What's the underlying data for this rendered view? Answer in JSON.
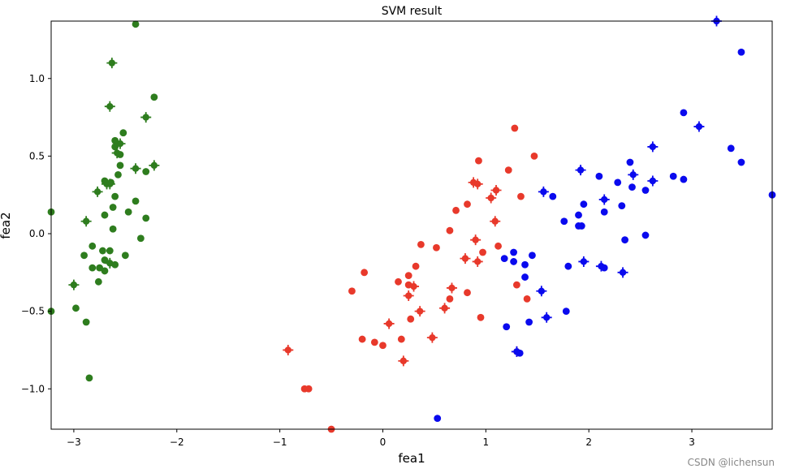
{
  "chart_data": {
    "type": "scatter",
    "title": "SVM result",
    "xlabel": "fea1",
    "ylabel": "fea2",
    "xlim": [
      -3.22,
      3.78
    ],
    "ylim": [
      -1.26,
      1.37
    ],
    "xticks": [
      -3,
      -2,
      -1,
      0,
      1,
      2,
      3
    ],
    "xtick_labels": [
      "−3",
      "−2",
      "−1",
      "0",
      "1",
      "2",
      "3"
    ],
    "yticks": [
      -1.0,
      -0.5,
      0.0,
      0.5,
      1.0
    ],
    "ytick_labels": [
      "−1.0",
      "−0.5",
      "0.0",
      "0.5",
      "1.0"
    ],
    "grid": false,
    "series": [
      {
        "color": "#2e7d1e",
        "points": [
          [
            -2.4,
            1.35
          ],
          [
            -2.22,
            0.88
          ],
          [
            -2.52,
            0.65
          ],
          [
            -2.6,
            0.6
          ],
          [
            -2.6,
            0.56
          ],
          [
            -2.55,
            0.51
          ],
          [
            -2.55,
            0.44
          ],
          [
            -2.57,
            0.38
          ],
          [
            -2.7,
            0.34
          ],
          [
            -2.64,
            0.33
          ],
          [
            -2.4,
            0.21
          ],
          [
            -2.6,
            0.24
          ],
          [
            -2.3,
            0.4
          ],
          [
            -2.62,
            0.17
          ],
          [
            -2.7,
            0.12
          ],
          [
            -2.47,
            0.14
          ],
          [
            -2.3,
            0.1
          ],
          [
            -3.22,
            0.14
          ],
          [
            -2.62,
            0.03
          ],
          [
            -2.35,
            -0.03
          ],
          [
            -2.82,
            -0.08
          ],
          [
            -2.65,
            -0.11
          ],
          [
            -2.72,
            -0.11
          ],
          [
            -2.5,
            -0.14
          ],
          [
            -2.9,
            -0.14
          ],
          [
            -2.7,
            -0.17
          ],
          [
            -2.6,
            -0.2
          ],
          [
            -2.82,
            -0.22
          ],
          [
            -2.75,
            -0.22
          ],
          [
            -2.7,
            -0.24
          ],
          [
            -2.76,
            -0.31
          ],
          [
            -2.98,
            -0.48
          ],
          [
            -3.22,
            -0.5
          ],
          [
            -2.88,
            -0.57
          ],
          [
            -2.85,
            -0.93
          ]
        ],
        "support_vectors": [
          [
            -2.63,
            1.1
          ],
          [
            -2.65,
            0.82
          ],
          [
            -2.3,
            0.75
          ],
          [
            -2.55,
            0.58
          ],
          [
            -2.58,
            0.52
          ],
          [
            -2.4,
            0.42
          ],
          [
            -2.22,
            0.44
          ],
          [
            -2.68,
            0.32
          ],
          [
            -2.77,
            0.27
          ],
          [
            -2.65,
            0.32
          ],
          [
            -2.88,
            0.08
          ],
          [
            -2.65,
            -0.19
          ],
          [
            -3.0,
            -0.33
          ]
        ]
      },
      {
        "color": "#e8392b",
        "points": [
          [
            1.28,
            0.68
          ],
          [
            1.47,
            0.5
          ],
          [
            0.93,
            0.47
          ],
          [
            1.22,
            0.41
          ],
          [
            1.34,
            0.24
          ],
          [
            0.82,
            0.19
          ],
          [
            0.71,
            0.15
          ],
          [
            0.65,
            0.02
          ],
          [
            0.37,
            -0.07
          ],
          [
            0.52,
            -0.09
          ],
          [
            1.12,
            -0.08
          ],
          [
            0.97,
            -0.12
          ],
          [
            0.32,
            -0.21
          ],
          [
            -0.18,
            -0.25
          ],
          [
            0.25,
            -0.27
          ],
          [
            0.15,
            -0.31
          ],
          [
            0.25,
            -0.33
          ],
          [
            1.3,
            -0.33
          ],
          [
            -0.3,
            -0.37
          ],
          [
            0.82,
            -0.38
          ],
          [
            1.4,
            -0.42
          ],
          [
            0.65,
            -0.42
          ],
          [
            0.27,
            -0.55
          ],
          [
            0.95,
            -0.54
          ],
          [
            -0.2,
            -0.68
          ],
          [
            0.18,
            -0.68
          ],
          [
            -0.08,
            -0.7
          ],
          [
            0.0,
            -0.72
          ],
          [
            -0.76,
            -1.0
          ],
          [
            -0.72,
            -1.0
          ],
          [
            -0.5,
            -1.26
          ]
        ],
        "support_vectors": [
          [
            0.88,
            0.33
          ],
          [
            0.92,
            0.32
          ],
          [
            1.1,
            0.28
          ],
          [
            1.05,
            0.23
          ],
          [
            1.09,
            0.08
          ],
          [
            0.9,
            -0.04
          ],
          [
            0.8,
            -0.16
          ],
          [
            0.92,
            -0.18
          ],
          [
            0.3,
            -0.34
          ],
          [
            0.67,
            -0.35
          ],
          [
            0.25,
            -0.4
          ],
          [
            0.6,
            -0.48
          ],
          [
            0.36,
            -0.5
          ],
          [
            0.06,
            -0.58
          ],
          [
            0.48,
            -0.67
          ],
          [
            1.3,
            -0.76
          ],
          [
            -0.92,
            -0.75
          ],
          [
            0.2,
            -0.82
          ]
        ]
      },
      {
        "color": "#0a0aee",
        "points": [
          [
            3.48,
            1.17
          ],
          [
            2.92,
            0.78
          ],
          [
            3.38,
            0.55
          ],
          [
            2.4,
            0.46
          ],
          [
            3.48,
            0.46
          ],
          [
            2.82,
            0.37
          ],
          [
            2.1,
            0.37
          ],
          [
            2.92,
            0.35
          ],
          [
            2.28,
            0.33
          ],
          [
            2.42,
            0.3
          ],
          [
            2.55,
            0.28
          ],
          [
            3.78,
            0.25
          ],
          [
            1.65,
            0.24
          ],
          [
            1.95,
            0.19
          ],
          [
            2.32,
            0.18
          ],
          [
            2.15,
            0.14
          ],
          [
            1.9,
            0.12
          ],
          [
            1.76,
            0.08
          ],
          [
            1.93,
            0.05
          ],
          [
            1.9,
            0.05
          ],
          [
            2.35,
            -0.04
          ],
          [
            2.55,
            -0.01
          ],
          [
            1.45,
            -0.14
          ],
          [
            1.18,
            -0.16
          ],
          [
            1.27,
            -0.12
          ],
          [
            1.27,
            -0.18
          ],
          [
            1.38,
            -0.2
          ],
          [
            1.8,
            -0.21
          ],
          [
            2.15,
            -0.22
          ],
          [
            1.38,
            -0.28
          ],
          [
            1.78,
            -0.5
          ],
          [
            1.42,
            -0.57
          ],
          [
            1.2,
            -0.6
          ],
          [
            1.33,
            -0.77
          ],
          [
            0.53,
            -1.19
          ]
        ],
        "support_vectors": [
          [
            3.24,
            1.37
          ],
          [
            3.07,
            0.69
          ],
          [
            2.62,
            0.56
          ],
          [
            1.92,
            0.41
          ],
          [
            2.43,
            0.38
          ],
          [
            2.15,
            0.22
          ],
          [
            2.62,
            0.34
          ],
          [
            1.56,
            0.27
          ],
          [
            1.95,
            -0.18
          ],
          [
            2.12,
            -0.21
          ],
          [
            2.33,
            -0.25
          ],
          [
            1.54,
            -0.37
          ],
          [
            1.59,
            -0.54
          ],
          [
            1.3,
            -0.76
          ]
        ]
      }
    ]
  },
  "watermark": "CSDN @lichensun"
}
